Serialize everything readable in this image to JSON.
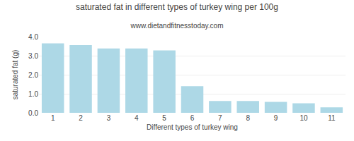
{
  "chart_data": {
    "type": "bar",
    "title": "saturated fat in different types of turkey wing per 100g",
    "subtitle": "www.dietandfitnesstoday.com",
    "xlabel": "Different types of turkey wing",
    "ylabel": "saturated fat (g)",
    "categories": [
      1,
      2,
      3,
      4,
      5,
      6,
      7,
      8,
      9,
      10,
      11
    ],
    "values": [
      3.65,
      3.56,
      3.38,
      3.38,
      3.28,
      1.4,
      0.62,
      0.62,
      0.57,
      0.5,
      0.29
    ],
    "color": "#add8e6",
    "ylim": [
      0,
      4.0
    ],
    "yticks": [
      {
        "value": 0.0,
        "label": "0.0"
      },
      {
        "value": 1.0,
        "label": "1.0"
      },
      {
        "value": 2.0,
        "label": "2.0"
      },
      {
        "value": 3.0,
        "label": "3.0"
      },
      {
        "value": 4.0,
        "label": "4.0"
      }
    ],
    "grid": true
  }
}
